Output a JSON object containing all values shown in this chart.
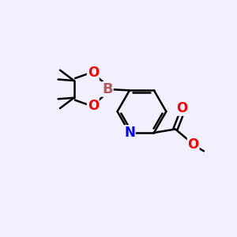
{
  "bg_color": "#f0f0ff",
  "bond_color": "#000000",
  "bond_width": 1.8,
  "atom_colors": {
    "B": "#b06060",
    "O": "#ff0000",
    "N": "#0000ff",
    "C": "#000000"
  },
  "figsize": [
    3.0,
    3.0
  ],
  "dpi": 100
}
